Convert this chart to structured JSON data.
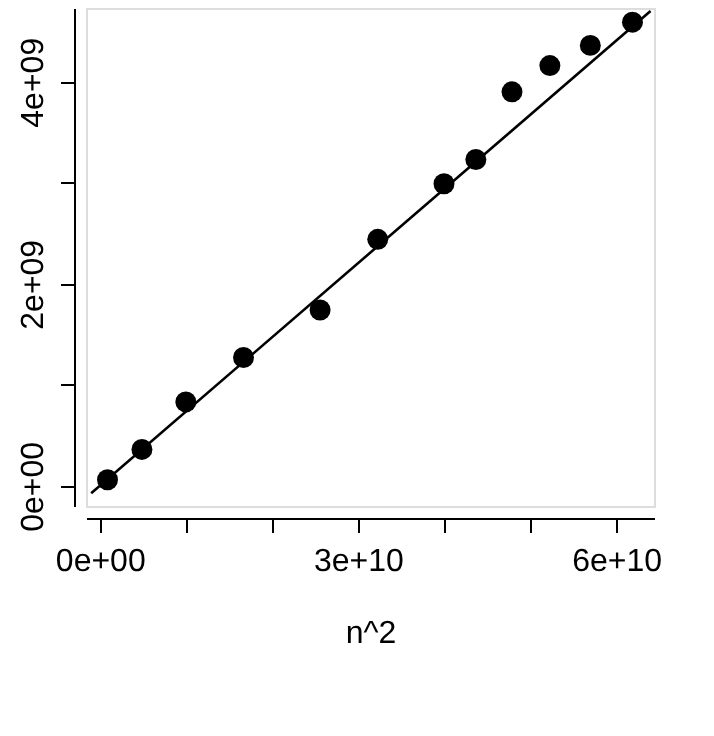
{
  "chart_data": {
    "type": "scatter",
    "xlabel": "n^2",
    "marker": "circle",
    "grid": false,
    "xlim": [
      -1600000000,
      64400000000
    ],
    "ylim": [
      -200000000,
      4730000000
    ],
    "xticks": [
      {
        "value": 0,
        "label": "0e+00"
      },
      {
        "value": 10000000000,
        "label": null
      },
      {
        "value": 20000000000,
        "label": null
      },
      {
        "value": 30000000000,
        "label": "3e+10"
      },
      {
        "value": 40000000000,
        "label": null
      },
      {
        "value": 50000000000,
        "label": null
      },
      {
        "value": 60000000000,
        "label": "6e+10"
      }
    ],
    "yticks": [
      {
        "value": 0,
        "label": "0e+00"
      },
      {
        "value": 1000000000,
        "label": null
      },
      {
        "value": 2000000000,
        "label": "2e+09"
      },
      {
        "value": 3000000000,
        "label": null
      },
      {
        "value": 4000000000,
        "label": "4e+09"
      }
    ],
    "series": [
      {
        "color": "#000000",
        "x": [
          900000000,
          4900000000,
          10000000000,
          16700000000,
          25600000000,
          32300000000,
          40000000000,
          43700000000,
          47900000000,
          52300000000,
          57000000000,
          61900000000
        ],
        "values": [
          60000000,
          360000000,
          830000000,
          1270000000,
          1740000000,
          2440000000,
          2990000000,
          3230000000,
          3900000000,
          4160000000,
          4360000000,
          4590000000
        ]
      },
      {
        "type": "line",
        "color": "#000000",
        "line_style": "solid",
        "marker": "none",
        "x": [
          -1000000000,
          64000000000
        ],
        "values": [
          -73500000,
          4700000000
        ]
      }
    ]
  }
}
